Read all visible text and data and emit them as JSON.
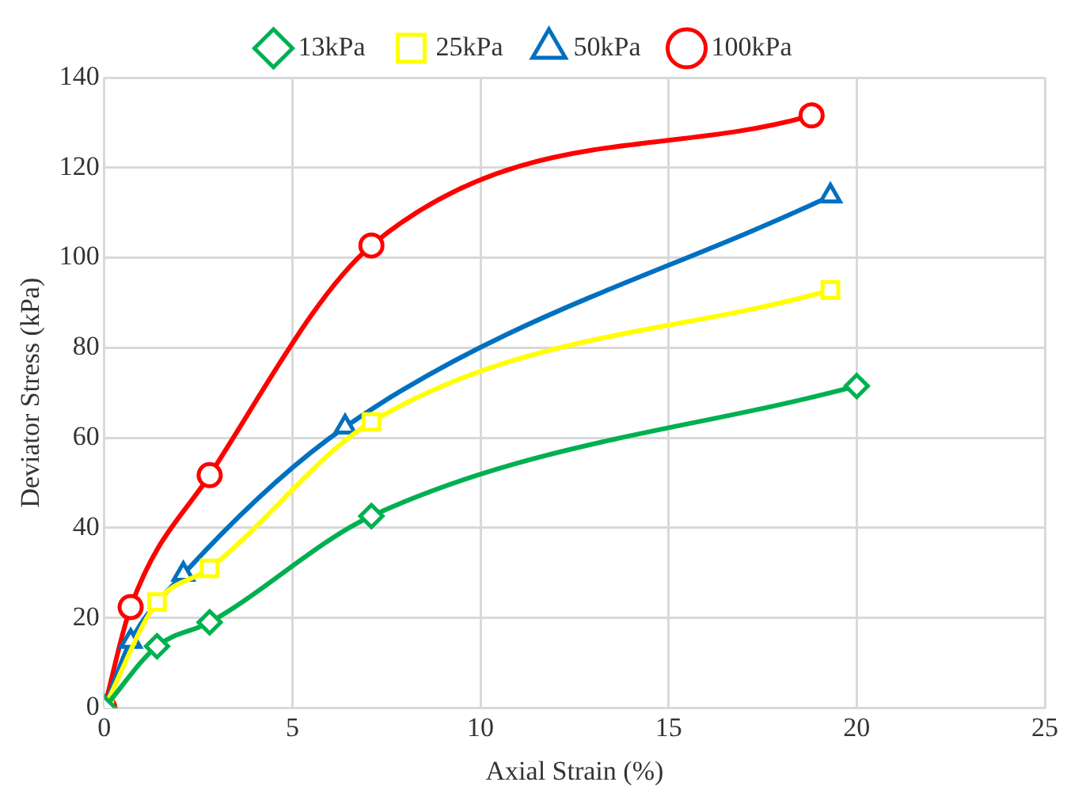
{
  "chart_data": {
    "type": "line",
    "xlabel": "Axial Strain (%)",
    "ylabel": "Deviator Stress (kPa)",
    "xlim": [
      0,
      25
    ],
    "xticks": [
      0,
      5,
      10,
      15,
      20,
      25
    ],
    "ylim": [
      0,
      140
    ],
    "yticks": [
      0,
      20,
      40,
      60,
      80,
      100,
      120,
      140
    ],
    "grid": true,
    "legend": "top",
    "line_style": "solid",
    "series": [
      {
        "name": "13kPa",
        "color": "#00b050",
        "marker": "diamond",
        "x": [
          0,
          1.4,
          2.8,
          7.1,
          20
        ],
        "values": [
          0,
          13.7,
          19,
          42.6,
          71.5
        ]
      },
      {
        "name": "25kPa",
        "color": "#ffff00",
        "marker": "square",
        "x": [
          0,
          1.4,
          2.8,
          7.1,
          19.3
        ],
        "values": [
          0,
          23.5,
          31,
          63.5,
          92.8
        ]
      },
      {
        "name": "50kPa",
        "color": "#0070c0",
        "marker": "triangle",
        "x": [
          0,
          0.7,
          2.1,
          6.4,
          19.3
        ],
        "values": [
          0,
          14.8,
          29.7,
          62.4,
          113.7
        ]
      },
      {
        "name": "100kPa",
        "color": "#ff0000",
        "marker": "circle",
        "x": [
          0,
          0.7,
          2.8,
          7.1,
          18.8
        ],
        "values": [
          0,
          22.4,
          51.7,
          102.7,
          131.6
        ]
      }
    ]
  }
}
